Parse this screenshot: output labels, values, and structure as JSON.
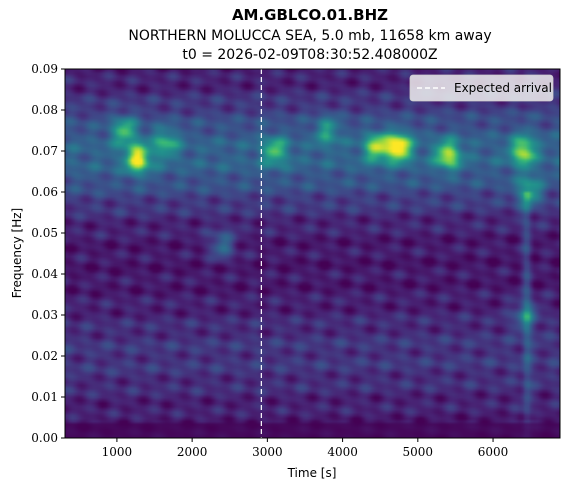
{
  "chart_data": {
    "type": "heatmap",
    "title": "AM.GBLCO.01.BHZ",
    "subtitle": "NORTHERN MOLUCCA SEA, 5.0 mb, 11658 km away",
    "subtitle2": "t0 = 2026-02-09T08:30:52.408000Z",
    "xlabel": "Time [s]",
    "ylabel": "Frequency [Hz]",
    "xlim": [
      310,
      6890
    ],
    "ylim": [
      0,
      0.09
    ],
    "xticks": [
      1000,
      2000,
      3000,
      4000,
      5000,
      6000
    ],
    "xtick_labels": [
      "1000",
      "2000",
      "3000",
      "4000",
      "5000",
      "6000"
    ],
    "yticks": [
      0,
      0.01,
      0.02,
      0.03,
      0.04,
      0.05,
      0.06,
      0.07,
      0.08,
      0.09
    ],
    "ytick_labels": [
      "0.00",
      "0.01",
      "0.02",
      "0.03",
      "0.04",
      "0.05",
      "0.06",
      "0.07",
      "0.08",
      "0.09"
    ],
    "colormap": "viridis",
    "expected_arrival": {
      "x": 2920,
      "label": "Expected arrival",
      "color": "#ffffff"
    },
    "legend_position": "top-right",
    "hotspots": [
      {
        "time": 1280,
        "freq": 0.068,
        "intensity": 0.85
      },
      {
        "time": 1100,
        "freq": 0.075,
        "intensity": 0.6
      },
      {
        "time": 4750,
        "freq": 0.071,
        "intensity": 0.95
      },
      {
        "time": 4450,
        "freq": 0.071,
        "intensity": 0.7
      },
      {
        "time": 5400,
        "freq": 0.069,
        "intensity": 0.75
      },
      {
        "time": 6400,
        "freq": 0.07,
        "intensity": 0.7
      },
      {
        "time": 6480,
        "freq": 0.06,
        "intensity": 0.55
      },
      {
        "time": 3100,
        "freq": 0.07,
        "intensity": 0.55
      },
      {
        "time": 2400,
        "freq": 0.047,
        "intensity": 0.45
      },
      {
        "time": 6430,
        "freq": 0.03,
        "intensity": 0.45
      },
      {
        "time": 1650,
        "freq": 0.072,
        "intensity": 0.5
      },
      {
        "time": 3800,
        "freq": 0.075,
        "intensity": 0.45
      }
    ]
  }
}
